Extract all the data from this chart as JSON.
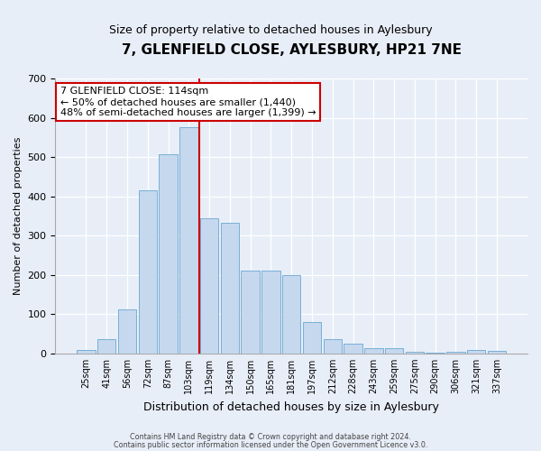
{
  "title": "7, GLENFIELD CLOSE, AYLESBURY, HP21 7NE",
  "subtitle": "Size of property relative to detached houses in Aylesbury",
  "xlabel": "Distribution of detached houses by size in Aylesbury",
  "ylabel": "Number of detached properties",
  "bar_labels": [
    "25sqm",
    "41sqm",
    "56sqm",
    "72sqm",
    "87sqm",
    "103sqm",
    "119sqm",
    "134sqm",
    "150sqm",
    "165sqm",
    "181sqm",
    "197sqm",
    "212sqm",
    "228sqm",
    "243sqm",
    "259sqm",
    "275sqm",
    "290sqm",
    "306sqm",
    "321sqm",
    "337sqm"
  ],
  "bar_values": [
    8,
    37,
    113,
    415,
    507,
    577,
    345,
    333,
    212,
    210,
    200,
    80,
    36,
    25,
    13,
    13,
    5,
    1,
    5,
    8,
    7
  ],
  "bar_color": "#c5d8ee",
  "bar_edge_color": "#7aafd4",
  "background_color": "#e8eef8",
  "vline_x": 6.0,
  "vline_color": "#cc0000",
  "annotation_text": "7 GLENFIELD CLOSE: 114sqm\n← 50% of detached houses are smaller (1,440)\n48% of semi-detached houses are larger (1,399) →",
  "annotation_box_color": "#ffffff",
  "annotation_box_edge": "#cc0000",
  "ylim": [
    0,
    700
  ],
  "yticks": [
    0,
    100,
    200,
    300,
    400,
    500,
    600,
    700
  ],
  "footer1": "Contains HM Land Registry data © Crown copyright and database right 2024.",
  "footer2": "Contains public sector information licensed under the Open Government Licence v3.0."
}
